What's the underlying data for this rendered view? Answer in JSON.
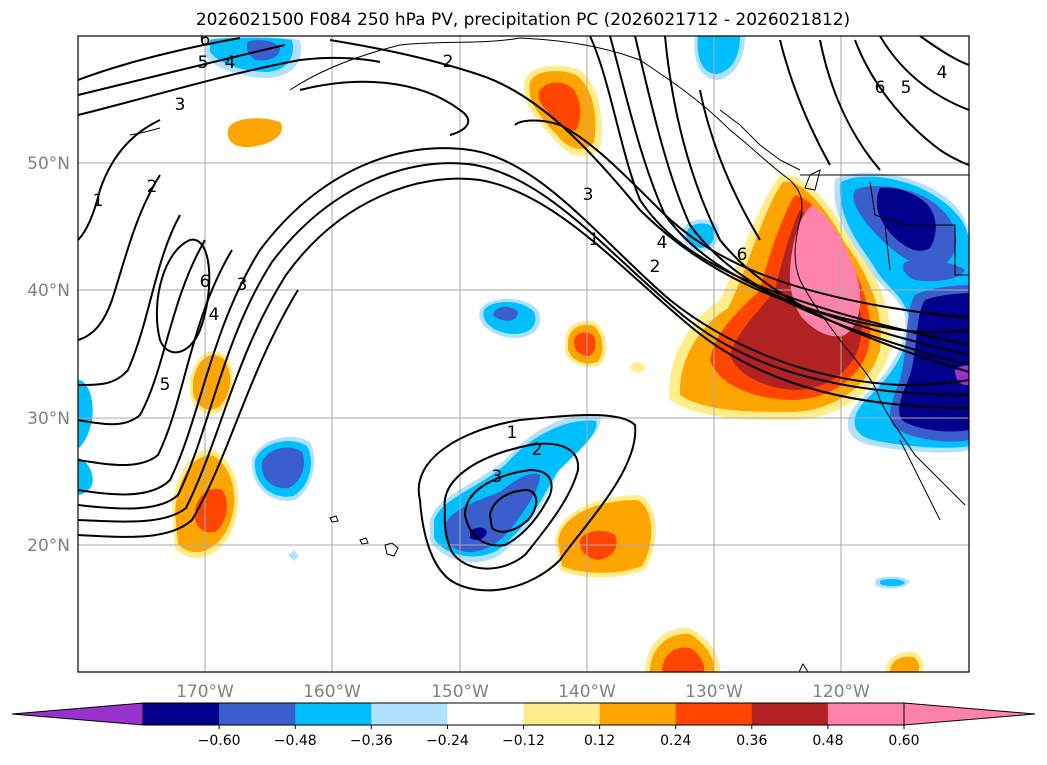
{
  "title": "2026021500 F084 250 hPa PV, precipitation PC (2026021712 - 2026021812)",
  "map": {
    "lat_labels": [
      "50°N",
      "40°N",
      "30°N",
      "20°N"
    ],
    "lon_labels": [
      "170°W",
      "160°W",
      "150°W",
      "140°W",
      "130°W",
      "120°W"
    ],
    "label_color": "#808080",
    "grid": true
  },
  "pv_contour_labels": [
    "1",
    "2",
    "3",
    "4",
    "5",
    "6"
  ],
  "colorbar": {
    "ticks": [
      "−0.60",
      "−0.48",
      "−0.36",
      "−0.24",
      "−0.12",
      "0.12",
      "0.24",
      "0.36",
      "0.48",
      "0.60"
    ],
    "colors": [
      "#9932cc",
      "#00008b",
      "#3a5fcd",
      "#00bfff",
      "#b0e2ff",
      "#ffffff",
      "#ffec8b",
      "#ffa500",
      "#ff4500",
      "#b22222",
      "#ff82ab",
      "#ff82ab"
    ],
    "extend": "both"
  }
}
